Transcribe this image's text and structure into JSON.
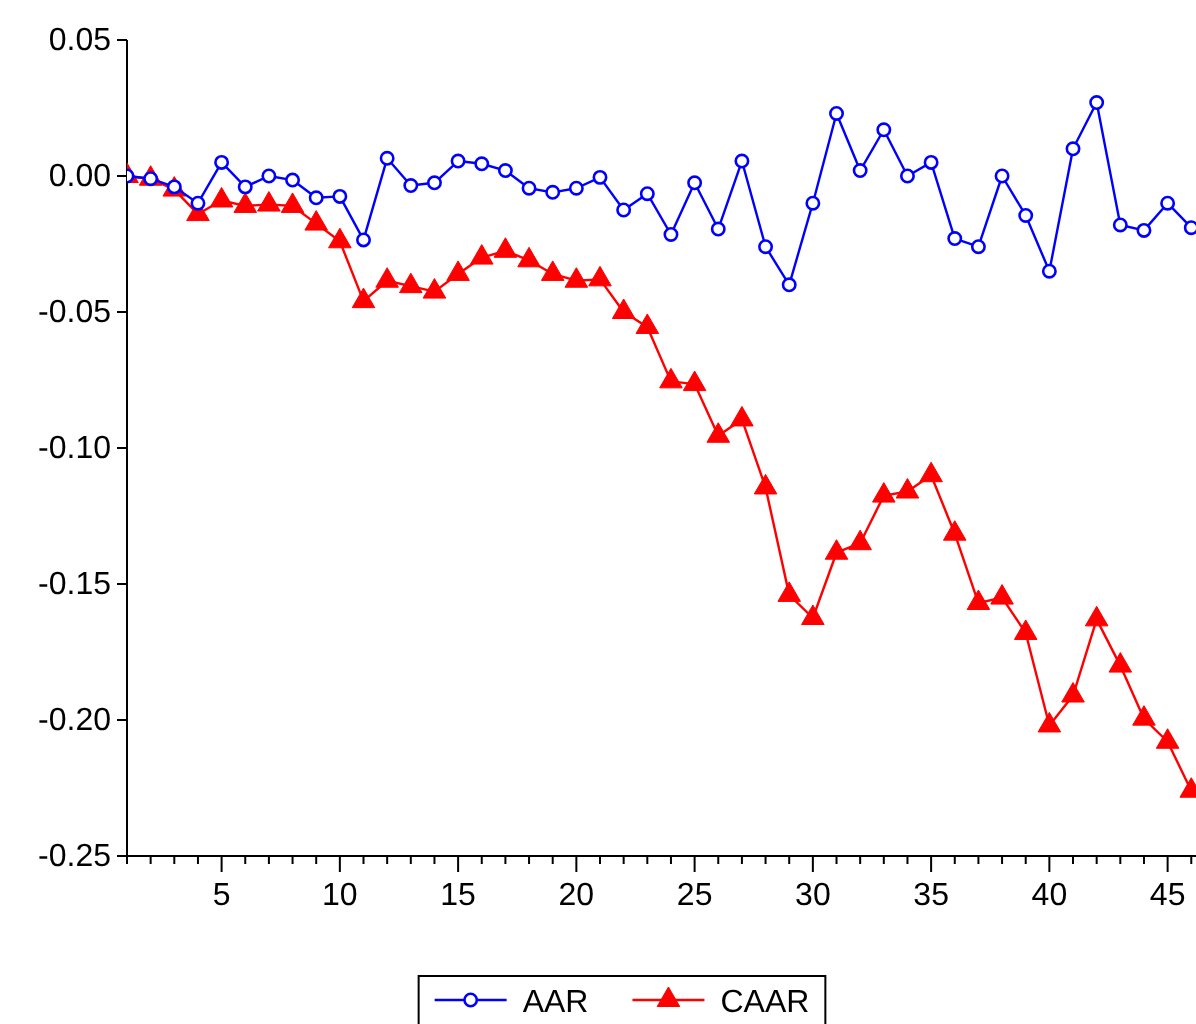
{
  "chart_data": {
    "type": "line",
    "x": [
      1,
      2,
      3,
      4,
      5,
      6,
      7,
      8,
      9,
      10,
      11,
      12,
      13,
      14,
      15,
      16,
      17,
      18,
      19,
      20,
      21,
      22,
      23,
      24,
      25,
      26,
      27,
      28,
      29,
      30,
      31,
      32,
      33,
      34,
      35,
      36,
      37,
      38,
      39,
      40,
      41,
      42,
      43,
      44,
      45,
      46
    ],
    "series": [
      {
        "name": "AAR",
        "color": "#0000ff",
        "marker": "circle",
        "values": [
          0.0,
          -0.001,
          -0.004,
          -0.01,
          0.005,
          -0.004,
          0.0,
          -0.0015,
          -0.008,
          -0.0075,
          -0.0235,
          0.0065,
          -0.0035,
          -0.0025,
          0.0055,
          0.0045,
          0.002,
          -0.0045,
          -0.006,
          -0.0045,
          -0.0005,
          -0.0125,
          -0.0065,
          -0.0215,
          -0.0025,
          -0.0195,
          0.0055,
          -0.026,
          -0.04,
          -0.01,
          0.023,
          0.002,
          0.017,
          0.0,
          0.005,
          -0.023,
          -0.026,
          0.0,
          -0.0145,
          -0.035,
          0.01,
          0.027,
          -0.018,
          -0.02,
          -0.01,
          -0.019
        ]
      },
      {
        "name": "CAAR",
        "color": "#ff0000",
        "marker": "triangle",
        "values": [
          0.0,
          -0.001,
          -0.005,
          -0.014,
          -0.009,
          -0.011,
          -0.0105,
          -0.011,
          -0.0175,
          -0.024,
          -0.046,
          -0.0385,
          -0.0405,
          -0.0425,
          -0.036,
          -0.03,
          -0.0275,
          -0.031,
          -0.036,
          -0.0385,
          -0.038,
          -0.05,
          -0.0555,
          -0.0755,
          -0.0765,
          -0.0955,
          -0.0895,
          -0.1145,
          -0.154,
          -0.1625,
          -0.1385,
          -0.135,
          -0.1175,
          -0.116,
          -0.11,
          -0.1315,
          -0.157,
          -0.155,
          -0.168,
          -0.202,
          -0.191,
          -0.163,
          -0.18,
          -0.1995,
          -0.208,
          -0.226
        ]
      }
    ],
    "xlim": [
      1,
      46.2
    ],
    "xticks": [
      {
        "value": 1,
        "label": null
      },
      {
        "value": 2,
        "label": null
      },
      {
        "value": 3,
        "label": null
      },
      {
        "value": 4,
        "label": null
      },
      5,
      {
        "value": 6,
        "label": null
      },
      {
        "value": 7,
        "label": null
      },
      {
        "value": 8,
        "label": null
      },
      {
        "value": 9,
        "label": null
      },
      10,
      {
        "value": 11,
        "label": null
      },
      {
        "value": 12,
        "label": null
      },
      {
        "value": 13,
        "label": null
      },
      {
        "value": 14,
        "label": null
      },
      15,
      {
        "value": 16,
        "label": null
      },
      {
        "value": 17,
        "label": null
      },
      {
        "value": 18,
        "label": null
      },
      {
        "value": 19,
        "label": null
      },
      20,
      {
        "value": 21,
        "label": null
      },
      {
        "value": 22,
        "label": null
      },
      {
        "value": 23,
        "label": null
      },
      {
        "value": 24,
        "label": null
      },
      25,
      {
        "value": 26,
        "label": null
      },
      {
        "value": 27,
        "label": null
      },
      {
        "value": 28,
        "label": null
      },
      {
        "value": 29,
        "label": null
      },
      30,
      {
        "value": 31,
        "label": null
      },
      {
        "value": 32,
        "label": null
      },
      {
        "value": 33,
        "label": null
      },
      {
        "value": 34,
        "label": null
      },
      35,
      {
        "value": 36,
        "label": null
      },
      {
        "value": 37,
        "label": null
      },
      {
        "value": 38,
        "label": null
      },
      {
        "value": 39,
        "label": null
      },
      40,
      {
        "value": 41,
        "label": null
      },
      {
        "value": 42,
        "label": null
      },
      {
        "value": 43,
        "label": null
      },
      {
        "value": 44,
        "label": null
      },
      45,
      {
        "value": 46,
        "label": null
      }
    ],
    "ylim": [
      -0.25,
      0.05
    ],
    "yticks": [
      {
        "value": 0.05,
        "label": "0.05"
      },
      {
        "value": 0,
        "label": "0.00"
      },
      {
        "value": -0.05,
        "label": "-0.05"
      },
      {
        "value": -0.1,
        "label": "-0.10"
      },
      {
        "value": -0.15,
        "label": "-0.15"
      },
      {
        "value": -0.2,
        "label": "-0.20"
      },
      {
        "value": -0.25,
        "label": "-0.25"
      }
    ],
    "grid": false,
    "legend": "bottom",
    "line_style": "solid"
  }
}
